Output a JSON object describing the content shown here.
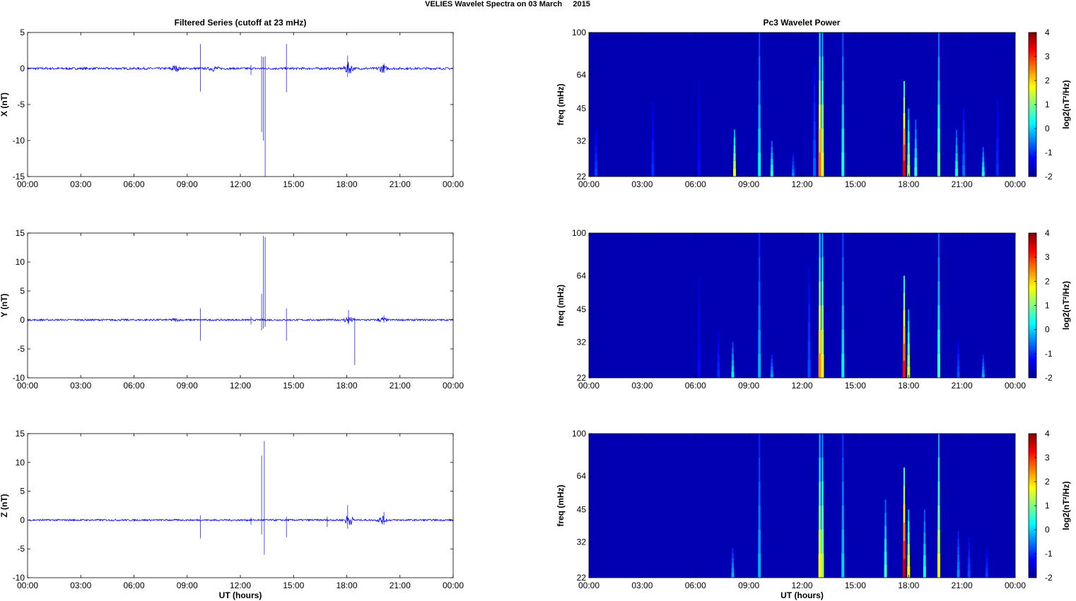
{
  "figure": {
    "suptitle": "VELIES Wavelet Spectra on 03 March     2015",
    "left_title": "Filtered Series (cutoff at 23 mHz)",
    "right_title": "Pc3 Wavelet Power",
    "xlabel": "UT (hours)"
  },
  "chart_data": [
    {
      "type": "line",
      "title": "Filtered Series (cutoff at 23 mHz)",
      "ylabel": "X (nT)",
      "xlabel": "",
      "xlim": [
        0,
        24
      ],
      "ylim": [
        -15,
        5
      ],
      "xticks": [
        "00:00",
        "03:00",
        "06:00",
        "09:00",
        "12:00",
        "15:00",
        "18:00",
        "21:00",
        "00:00"
      ],
      "yticks": [
        "5",
        "0",
        "-5",
        "-10",
        "-15"
      ],
      "color": "#0000ff",
      "spikes": [
        {
          "t": 9.75,
          "min": -3.2,
          "max": 3.4
        },
        {
          "t": 12.6,
          "min": -0.9,
          "max": 0.5
        },
        {
          "t": 13.2,
          "min": -8.8,
          "max": 1.7
        },
        {
          "t": 13.3,
          "min": -10.0,
          "max": 1.6
        },
        {
          "t": 13.4,
          "min": -15.0,
          "max": 1.7
        },
        {
          "t": 14.6,
          "min": -3.3,
          "max": 3.4
        },
        {
          "t": 18.05,
          "min": -1.2,
          "max": 1.8
        },
        {
          "t": 20.1,
          "min": -0.6,
          "max": 0.7
        }
      ],
      "bursts": [
        {
          "t": 8.3,
          "amp": 0.4
        },
        {
          "t": 10.5,
          "amp": 0.3
        },
        {
          "t": 18.1,
          "amp": 0.8
        },
        {
          "t": 20.0,
          "amp": 0.5
        }
      ]
    },
    {
      "type": "line",
      "title": "",
      "ylabel": "Y (nT)",
      "xlabel": "",
      "xlim": [
        0,
        24
      ],
      "ylim": [
        -10,
        15
      ],
      "xticks": [
        "00:00",
        "03:00",
        "06:00",
        "09:00",
        "12:00",
        "15:00",
        "18:00",
        "21:00",
        "00:00"
      ],
      "yticks": [
        "15",
        "10",
        "5",
        "0",
        "-5",
        "-10"
      ],
      "color": "#0000ff",
      "spikes": [
        {
          "t": 9.75,
          "min": -3.6,
          "max": 2.0
        },
        {
          "t": 12.6,
          "min": -0.8,
          "max": 0.6
        },
        {
          "t": 13.2,
          "min": -1.8,
          "max": 4.5
        },
        {
          "t": 13.3,
          "min": -1.5,
          "max": 14.5
        },
        {
          "t": 13.4,
          "min": -1.2,
          "max": 14.3
        },
        {
          "t": 14.6,
          "min": -3.6,
          "max": 2.0
        },
        {
          "t": 18.1,
          "min": -0.8,
          "max": 1.7
        },
        {
          "t": 18.45,
          "min": -7.8,
          "max": 0.4
        },
        {
          "t": 20.1,
          "min": -0.5,
          "max": 0.8
        }
      ],
      "bursts": [
        {
          "t": 8.3,
          "amp": 0.2
        },
        {
          "t": 18.1,
          "amp": 0.6
        },
        {
          "t": 20.0,
          "amp": 0.4
        }
      ]
    },
    {
      "type": "line",
      "title": "",
      "ylabel": "Z (nT)",
      "xlabel": "UT (hours)",
      "xlim": [
        0,
        24
      ],
      "ylim": [
        -10,
        15
      ],
      "xticks": [
        "00:00",
        "03:00",
        "06:00",
        "09:00",
        "12:00",
        "15:00",
        "18:00",
        "21:00",
        "00:00"
      ],
      "yticks": [
        "15",
        "10",
        "5",
        "0",
        "-5",
        "-10"
      ],
      "color": "#0000ff",
      "spikes": [
        {
          "t": 9.75,
          "min": -3.2,
          "max": 0.8
        },
        {
          "t": 12.6,
          "min": -0.8,
          "max": 0.4
        },
        {
          "t": 13.2,
          "min": -2.5,
          "max": 11.2
        },
        {
          "t": 13.35,
          "min": -6.0,
          "max": 13.7
        },
        {
          "t": 14.6,
          "min": -3.0,
          "max": 0.6
        },
        {
          "t": 16.9,
          "min": -1.2,
          "max": 0.6
        },
        {
          "t": 18.05,
          "min": -1.5,
          "max": 2.6
        },
        {
          "t": 20.1,
          "min": -0.8,
          "max": 1.4
        }
      ],
      "bursts": [
        {
          "t": 18.1,
          "amp": 1.0
        },
        {
          "t": 20.0,
          "amp": 0.6
        }
      ]
    },
    {
      "type": "heatmap",
      "title": "Pc3 Wavelet Power",
      "ylabel": "freq (mHz)",
      "xlabel": "",
      "xlim": [
        0,
        24
      ],
      "ylim": [
        22,
        100
      ],
      "yscale": "log",
      "xticks": [
        "00:00",
        "03:00",
        "06:00",
        "09:00",
        "12:00",
        "15:00",
        "18:00",
        "21:00",
        "00:00"
      ],
      "yticks": [
        100,
        64,
        45,
        32,
        22
      ],
      "colorbar": {
        "label": "log2(nT²/Hz)",
        "range": [
          -2,
          4
        ],
        "ticks": [
          "4",
          "3",
          "2",
          "1",
          "0",
          "-1",
          "-2"
        ],
        "colormap": "jet"
      },
      "background": -1.7,
      "events": [
        {
          "t": 0.4,
          "top": 36,
          "peak": -0.9
        },
        {
          "t": 3.6,
          "top": 48,
          "peak": -1.0
        },
        {
          "t": 6.2,
          "top": 60,
          "peak": -1.2
        },
        {
          "t": 8.2,
          "top": 36,
          "peak": 1.6
        },
        {
          "t": 9.6,
          "top": 100,
          "peak": 0.2
        },
        {
          "t": 10.3,
          "top": 32,
          "peak": 0.5
        },
        {
          "t": 11.5,
          "top": 28,
          "peak": -0.5
        },
        {
          "t": 12.7,
          "top": 70,
          "peak": -0.7
        },
        {
          "t": 13.0,
          "top": 100,
          "peak": 2.6
        },
        {
          "t": 13.15,
          "top": 100,
          "peak": 1.5
        },
        {
          "t": 14.3,
          "top": 100,
          "peak": 0.4
        },
        {
          "t": 17.75,
          "top": 60,
          "peak": 3.4
        },
        {
          "t": 18.0,
          "top": 45,
          "peak": 1.2
        },
        {
          "t": 18.4,
          "top": 40,
          "peak": 0.5
        },
        {
          "t": 19.7,
          "top": 100,
          "peak": 0.8
        },
        {
          "t": 20.7,
          "top": 36,
          "peak": 0.4
        },
        {
          "t": 21.1,
          "top": 45,
          "peak": -0.6
        },
        {
          "t": 22.2,
          "top": 30,
          "peak": 0.4
        },
        {
          "t": 23.0,
          "top": 50,
          "peak": -1.0
        }
      ]
    },
    {
      "type": "heatmap",
      "title": "",
      "ylabel": "freq (mHz)",
      "xlabel": "",
      "xlim": [
        0,
        24
      ],
      "ylim": [
        22,
        100
      ],
      "yscale": "log",
      "xticks": [
        "00:00",
        "03:00",
        "06:00",
        "09:00",
        "12:00",
        "15:00",
        "18:00",
        "21:00",
        "00:00"
      ],
      "yticks": [
        100,
        64,
        45,
        32,
        22
      ],
      "colorbar": {
        "label": "log2(nT²/Hz)",
        "range": [
          -2,
          4
        ],
        "ticks": [
          "4",
          "3",
          "2",
          "1",
          "0",
          "-1",
          "-2"
        ],
        "colormap": "jet"
      },
      "background": -1.7,
      "events": [
        {
          "t": 6.2,
          "top": 64,
          "peak": -1.2
        },
        {
          "t": 7.3,
          "top": 36,
          "peak": -1.0
        },
        {
          "t": 8.1,
          "top": 32,
          "peak": 0.2
        },
        {
          "t": 9.6,
          "top": 100,
          "peak": -0.2
        },
        {
          "t": 10.3,
          "top": 28,
          "peak": -0.3
        },
        {
          "t": 12.4,
          "top": 70,
          "peak": -0.8
        },
        {
          "t": 13.0,
          "top": 100,
          "peak": 2.4
        },
        {
          "t": 13.15,
          "top": 100,
          "peak": 1.6
        },
        {
          "t": 14.3,
          "top": 100,
          "peak": 0.2
        },
        {
          "t": 17.75,
          "top": 64,
          "peak": 3.2
        },
        {
          "t": 18.0,
          "top": 45,
          "peak": 1.4
        },
        {
          "t": 19.7,
          "top": 100,
          "peak": 0.6
        },
        {
          "t": 20.8,
          "top": 32,
          "peak": -0.8
        },
        {
          "t": 22.2,
          "top": 28,
          "peak": -0.2
        }
      ]
    },
    {
      "type": "heatmap",
      "title": "",
      "ylabel": "freq (mHz)",
      "xlabel": "UT (hours)",
      "xlim": [
        0,
        24
      ],
      "ylim": [
        22,
        100
      ],
      "yscale": "log",
      "xticks": [
        "00:00",
        "03:00",
        "06:00",
        "09:00",
        "12:00",
        "15:00",
        "18:00",
        "21:00",
        "00:00"
      ],
      "yticks": [
        100,
        64,
        45,
        32,
        22
      ],
      "colorbar": {
        "label": "log2(nT²/Hz)",
        "range": [
          -2,
          4
        ],
        "ticks": [
          "4",
          "3",
          "2",
          "1",
          "0",
          "-1",
          "-2"
        ],
        "colormap": "jet"
      },
      "background": -1.7,
      "events": [
        {
          "t": 8.1,
          "top": 30,
          "peak": -0.2
        },
        {
          "t": 9.6,
          "top": 100,
          "peak": -0.2
        },
        {
          "t": 13.0,
          "top": 100,
          "peak": 1.8
        },
        {
          "t": 13.15,
          "top": 100,
          "peak": 1.2
        },
        {
          "t": 14.3,
          "top": 100,
          "peak": 0.0
        },
        {
          "t": 16.7,
          "top": 50,
          "peak": 0.6
        },
        {
          "t": 17.75,
          "top": 70,
          "peak": 3.6
        },
        {
          "t": 18.0,
          "top": 45,
          "peak": 1.8
        },
        {
          "t": 18.9,
          "top": 45,
          "peak": 0.4
        },
        {
          "t": 19.7,
          "top": 100,
          "peak": 1.6
        },
        {
          "t": 20.8,
          "top": 36,
          "peak": -0.4
        },
        {
          "t": 21.4,
          "top": 34,
          "peak": -0.8
        },
        {
          "t": 22.4,
          "top": 30,
          "peak": -0.9
        }
      ]
    }
  ]
}
